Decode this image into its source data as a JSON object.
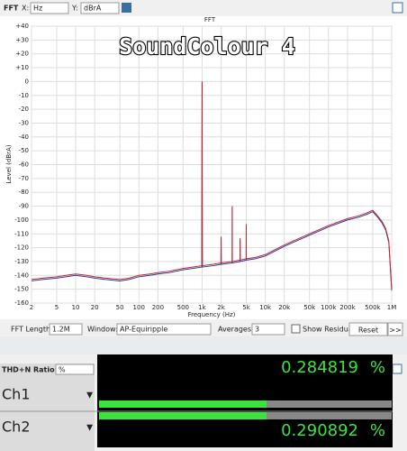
{
  "toolbar": {
    "title": "FFT",
    "x_label": "X:",
    "x_unit": "Hz",
    "y_label": "Y:",
    "y_unit": "dBrA"
  },
  "chart_data": {
    "type": "line",
    "title": "FFT",
    "annotation": "SoundColour 4",
    "x_label": "Frequency (Hz)",
    "y_label": "Level (dBrA)",
    "x_log": true,
    "grid": true,
    "xlim": [
      2,
      1000000
    ],
    "ylim": [
      -160,
      40
    ],
    "xticks": [
      2,
      5,
      10,
      20,
      50,
      100,
      200,
      500,
      {
        "value": 1000,
        "label": "1k"
      },
      {
        "value": 2000,
        "label": "2k"
      },
      {
        "value": 5000,
        "label": "5k"
      },
      {
        "value": 10000,
        "label": "10k"
      },
      {
        "value": 20000,
        "label": "20k"
      },
      {
        "value": 50000,
        "label": "50k"
      },
      {
        "value": 100000,
        "label": "100k"
      },
      {
        "value": 200000,
        "label": "200k"
      },
      {
        "value": 500000,
        "label": "500k"
      },
      {
        "value": 1000000,
        "label": "1M"
      }
    ],
    "yticks": [
      {
        "value": 40,
        "label": "+40"
      },
      {
        "value": 30,
        "label": "+30"
      },
      {
        "value": 20,
        "label": "+20"
      },
      {
        "value": 10,
        "label": "+10"
      },
      0,
      -10,
      -20,
      -30,
      -40,
      -50,
      -60,
      -70,
      -80,
      -90,
      -100,
      -110,
      -120,
      -130,
      -140,
      -150,
      -160
    ],
    "x": [
      2,
      3,
      5,
      7,
      10,
      15,
      20,
      30,
      50,
      70,
      100,
      150,
      200,
      300,
      500,
      700,
      990,
      1000,
      1010,
      1500,
      1990,
      2000,
      2010,
      2990,
      3000,
      3010,
      3990,
      4000,
      4010,
      4990,
      5000,
      5010,
      7000,
      10000,
      20000,
      50000,
      100000,
      200000,
      300000,
      400000,
      500000,
      600000,
      700000,
      800000,
      900000,
      1000000
    ],
    "series": [
      {
        "color": "#2b3f9c",
        "values": [
          -144,
          -143,
          -142,
          -141,
          -140,
          -141,
          -142,
          -143,
          -144,
          -143,
          -141,
          -140,
          -139,
          -138,
          -136,
          -135,
          -134,
          0,
          -134,
          -133,
          -132,
          -113,
          -132,
          -131,
          -91,
          -131,
          -130,
          -114,
          -130,
          -129,
          -104,
          -129,
          -128,
          -126,
          -119,
          -111,
          -105,
          -100,
          -98,
          -96,
          -94,
          -98,
          -102,
          -107,
          -116,
          -151
        ]
      },
      {
        "color": "#c0282e",
        "values": [
          -143,
          -142,
          -141,
          -140,
          -139,
          -140,
          -141,
          -142,
          -143,
          -142,
          -140,
          -139,
          -138,
          -137,
          -135,
          -134,
          -133,
          0,
          -133,
          -132,
          -131,
          -112,
          -131,
          -130,
          -90,
          -130,
          -129,
          -113,
          -129,
          -128,
          -103,
          -128,
          -127,
          -125,
          -118,
          -110,
          -104,
          -99,
          -97,
          -95,
          -93,
          -97,
          -101,
          -106,
          -115,
          -150
        ]
      }
    ]
  },
  "controls": {
    "fft_length_label": "FFT Length:",
    "fft_length": "1.2M",
    "window_label": "Window:",
    "window": "AP-Equiripple",
    "averages_label": "Averages:",
    "averages": "3",
    "residual": "Show Residual",
    "reset": "Reset",
    "more": ">>"
  },
  "meter": {
    "title": "THD+N Ratio",
    "unit": "%",
    "channels": [
      {
        "name": "Ch1",
        "reading": "0.284819",
        "unit": "%"
      },
      {
        "name": "Ch2",
        "reading": "0.290892",
        "unit": "%"
      }
    ]
  }
}
